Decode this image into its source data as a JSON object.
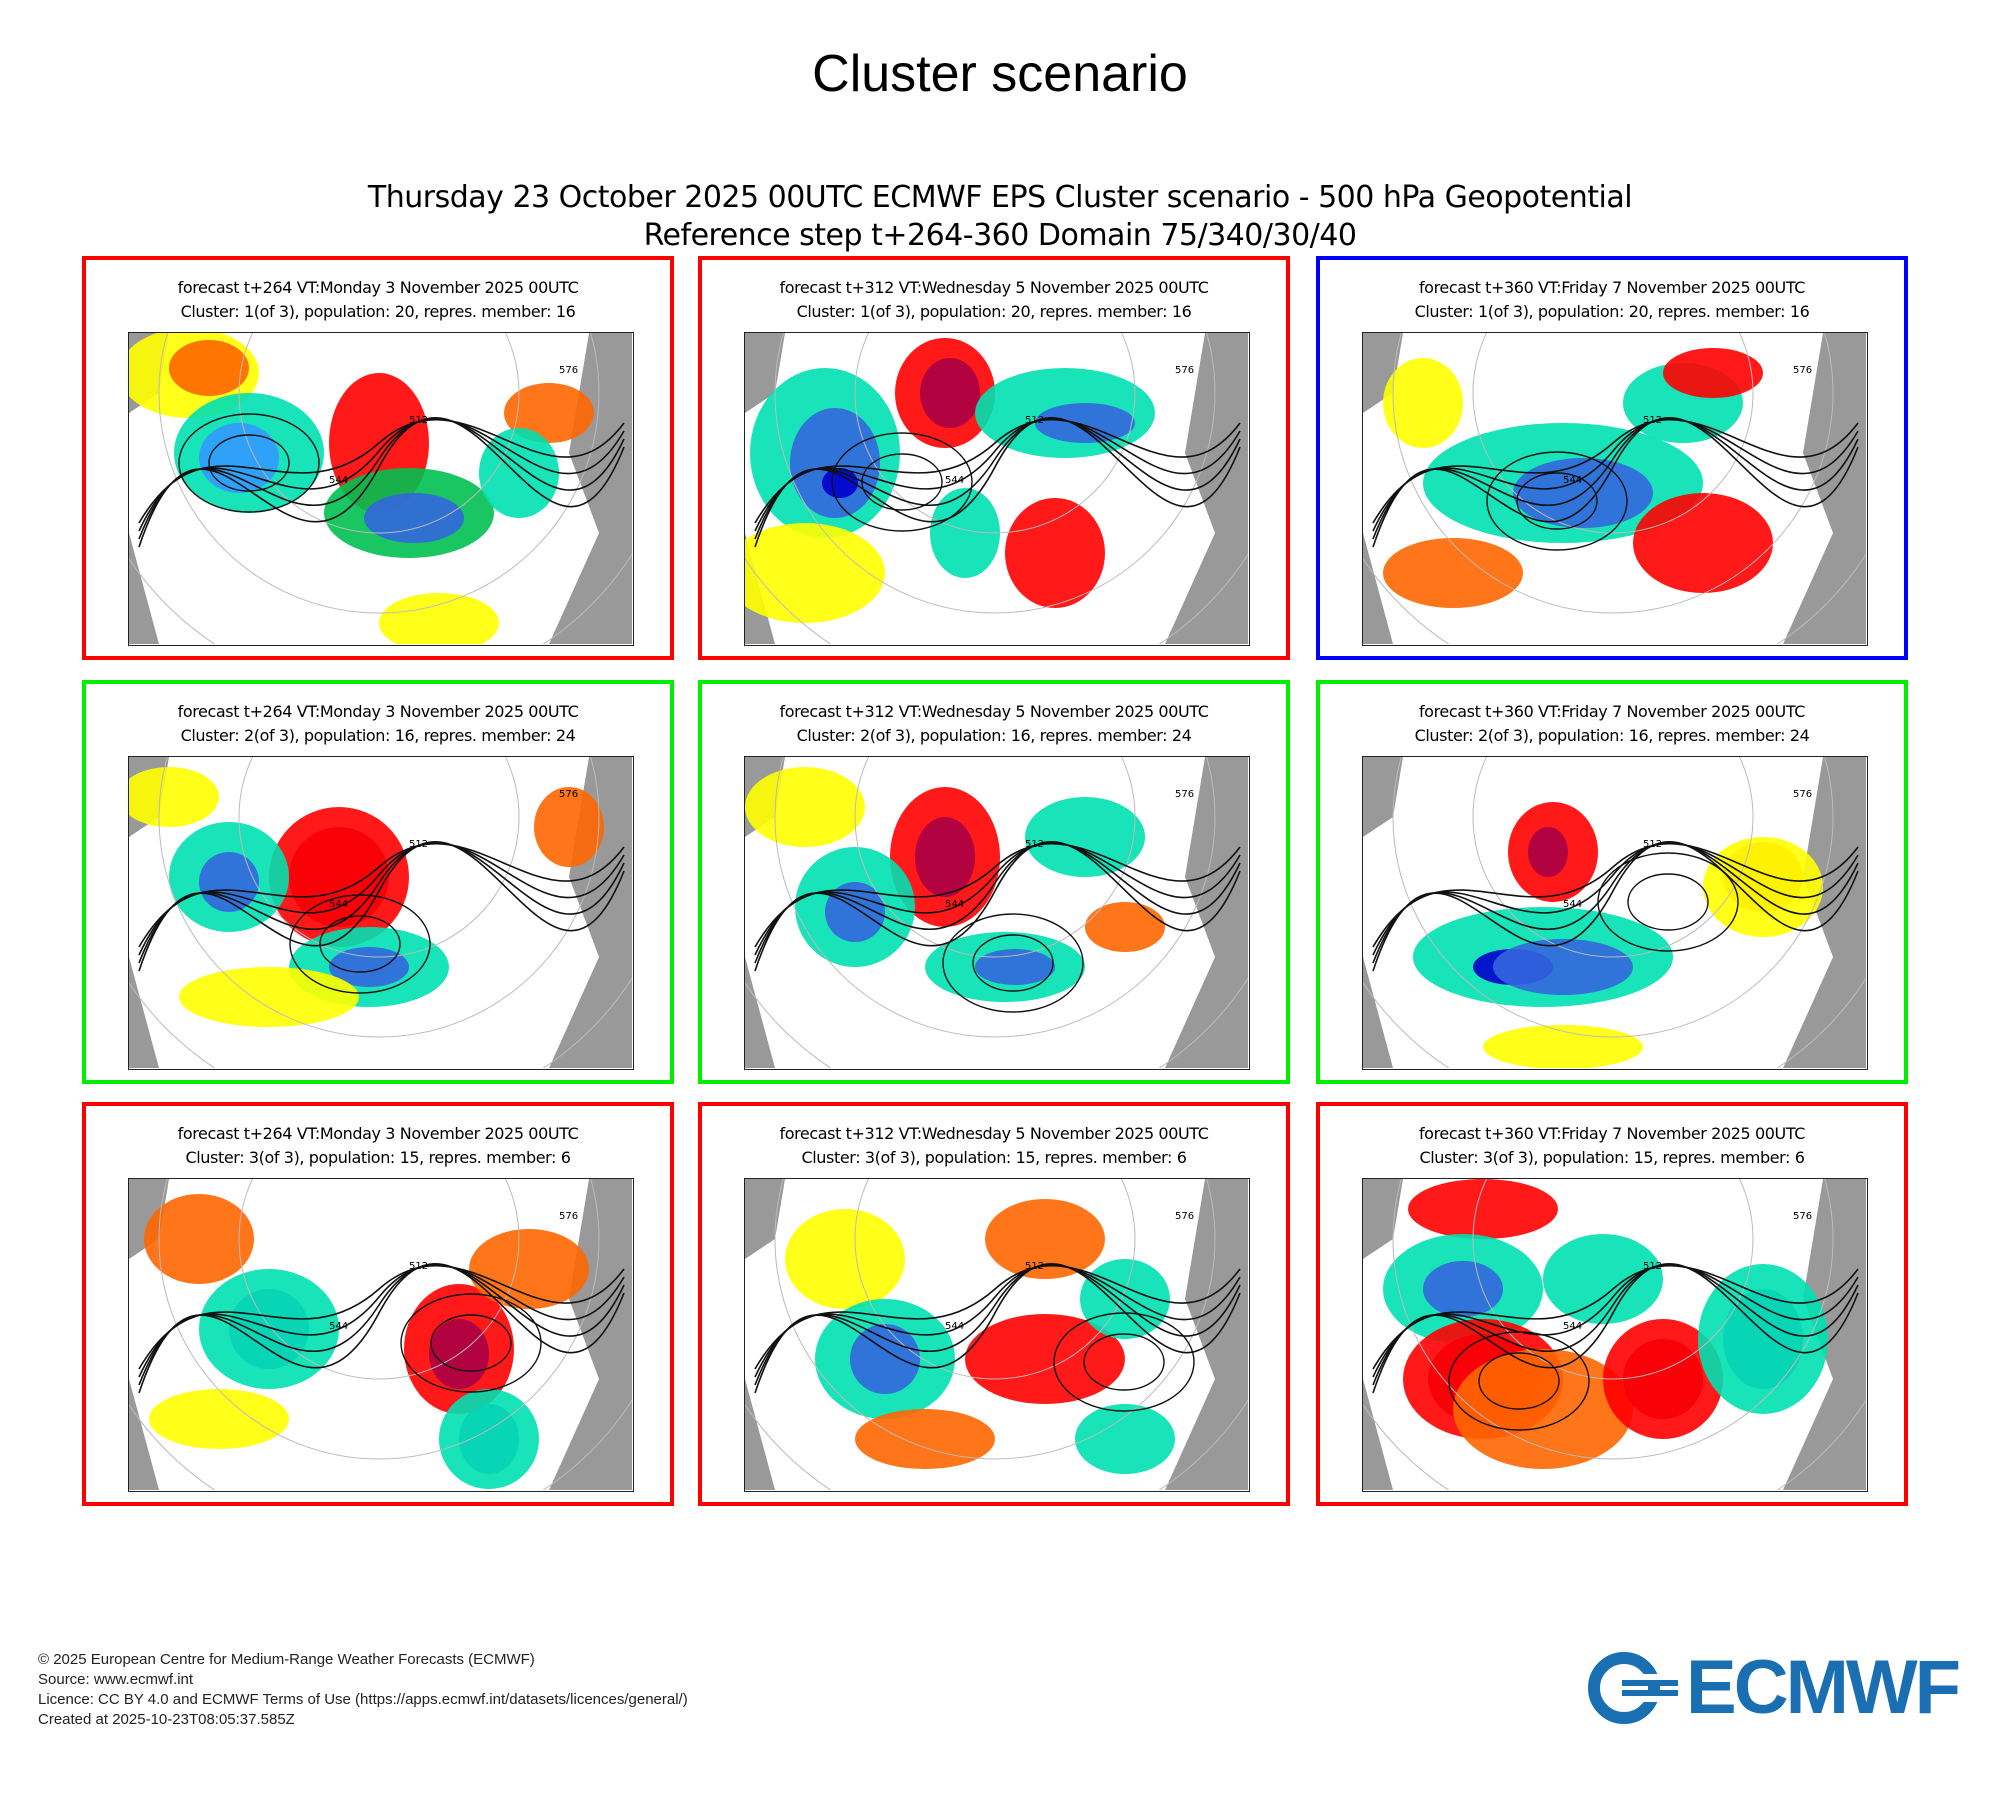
{
  "title": "Cluster scenario",
  "header": {
    "line1": "Thursday 23 October 2025 00UTC ECMWF EPS Cluster scenario - 500 hPa Geopotential",
    "line2": "Reference step t+264-360 Domain 75/340/30/40"
  },
  "colors": {
    "border_red": "#ff0000",
    "border_green": "#00ee00",
    "border_blue": "#0000ff",
    "land": "#999999",
    "logo": "#1a6fb3"
  },
  "panels": [
    {
      "line1": "forecast t+264 VT:Monday 3 November 2025 00UTC",
      "line2": "Cluster: 1(of 3), population: 20, repres. member: 16",
      "border": "red"
    },
    {
      "line1": "forecast t+312 VT:Wednesday 5 November 2025 00UTC",
      "line2": "Cluster: 1(of 3), population: 20, repres. member: 16",
      "border": "red"
    },
    {
      "line1": "forecast t+360 VT:Friday 7 November 2025 00UTC",
      "line2": "Cluster: 1(of 3), population: 20, repres. member: 16",
      "border": "blue"
    },
    {
      "line1": "forecast t+264 VT:Monday 3 November 2025 00UTC",
      "line2": "Cluster: 2(of 3), population: 16, repres. member: 24",
      "border": "green"
    },
    {
      "line1": "forecast t+312 VT:Wednesday 5 November 2025 00UTC",
      "line2": "Cluster: 2(of 3), population: 16, repres. member: 24",
      "border": "green"
    },
    {
      "line1": "forecast t+360 VT:Friday 7 November 2025 00UTC",
      "line2": "Cluster: 2(of 3), population: 16, repres. member: 24",
      "border": "green"
    },
    {
      "line1": "forecast t+264 VT:Monday 3 November 2025 00UTC",
      "line2": "Cluster: 3(of 3), population: 15, repres. member: 6",
      "border": "red"
    },
    {
      "line1": "forecast t+312 VT:Wednesday 5 November 2025 00UTC",
      "line2": "Cluster: 3(of 3), population: 15, repres. member: 6",
      "border": "red"
    },
    {
      "line1": "forecast t+360 VT:Friday 7 November 2025 00UTC",
      "line2": "Cluster: 3(of 3), population: 15, repres. member: 6",
      "border": "red"
    }
  ],
  "contour_labels": [
    "576",
    "544",
    "512"
  ],
  "footer": {
    "copyright": "© 2025 European Centre for Medium-Range Weather Forecasts (ECMWF)",
    "source": "Source: www.ecmwf.int",
    "licence": "Licence: CC BY 4.0 and ECMWF Terms of Use (https://apps.ecmwf.int/datasets/licences/general/)",
    "created": "Created at 2025-10-23T08:05:37.585Z"
  },
  "logo": {
    "text": "ECMWF"
  }
}
